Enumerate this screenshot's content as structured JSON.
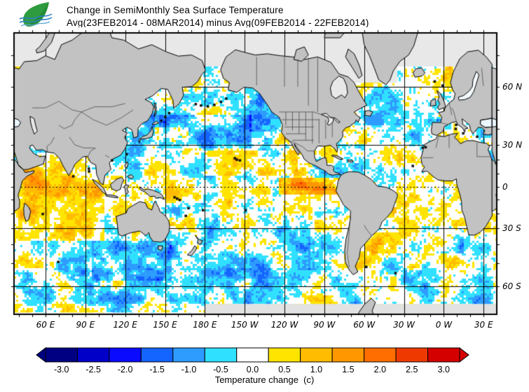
{
  "header": {
    "title_line1": "Change in SemiMonthly Sea Surface Temperature",
    "title_line2": "Avg(23FEB2014 - 08MAR2014) minus Avg(09FEB2014 - 22FEB2014)",
    "logo": {
      "leaf_color": "#2e9b3e",
      "leaf_dark": "#1d7a2c",
      "wave_color": "#2b7fc2"
    }
  },
  "map": {
    "projection": "mercator",
    "lon_ticks": [
      {
        "lon": 60,
        "label": "60 E"
      },
      {
        "lon": 90,
        "label": "90 E"
      },
      {
        "lon": 120,
        "label": "120 E"
      },
      {
        "lon": 150,
        "label": "150 E"
      },
      {
        "lon": 180,
        "label": "180 E"
      },
      {
        "lon": 210,
        "label": "150 W"
      },
      {
        "lon": 240,
        "label": "120 W"
      },
      {
        "lon": 270,
        "label": "90 W"
      },
      {
        "lon": 300,
        "label": "60 W"
      },
      {
        "lon": 330,
        "label": "30 W"
      },
      {
        "lon": 360,
        "label": "0 W"
      },
      {
        "lon": 390,
        "label": "30 E"
      }
    ],
    "lat_ticks": [
      {
        "lat": 60,
        "label": "60 N"
      },
      {
        "lat": 30,
        "label": "30 N"
      },
      {
        "lat": 0,
        "label": "0"
      },
      {
        "lat": -30,
        "label": "30 S"
      },
      {
        "lat": -60,
        "label": "60 S"
      }
    ],
    "land_color": "#c2c2c2",
    "nodata_color": "#e8e8e8",
    "ocean_zero_color": "#ffffff",
    "coast_color": "#000000"
  },
  "colorbar": {
    "caption": "Temperature change  (c)",
    "units": "c",
    "labels": [
      "-3.0",
      "-2.5",
      "-2.0",
      "-1.5",
      "-1.0",
      "-0.5",
      "0.0",
      "0.5",
      "1.0",
      "1.5",
      "2.0",
      "2.5",
      "3.0"
    ],
    "colors": [
      "#000082",
      "#0000c8",
      "#0a0aff",
      "#1464ff",
      "#2e9bff",
      "#30e1ff",
      "#ffffff",
      "#ffe400",
      "#ffbc00",
      "#ff9800",
      "#ff6e00",
      "#ee3a00",
      "#d40000"
    ]
  },
  "chart_data": {
    "type": "heatmap",
    "title": "Change in SemiMonthly Sea Surface Temperature",
    "subtitle": "Avg(23FEB2014 - 08MAR2014) minus Avg(09FEB2014 - 22FEB2014)",
    "variable": "sea surface temperature change",
    "units": "deg C",
    "scale_values": [
      -3.0,
      -2.5,
      -2.0,
      -1.5,
      -1.0,
      -0.5,
      0.0,
      0.5,
      1.0,
      1.5,
      2.0,
      2.5,
      3.0
    ],
    "palette": [
      "#000082",
      "#0000c8",
      "#0a0aff",
      "#1464ff",
      "#2e9bff",
      "#30e1ff",
      "#ffffff",
      "#ffe400",
      "#ffbc00",
      "#ff9800",
      "#ff6e00",
      "#ee3a00",
      "#d40000"
    ],
    "x_axis": {
      "label_ticks": [
        "60 E",
        "90 E",
        "120 E",
        "150 E",
        "180 E",
        "150 W",
        "120 W",
        "90 W",
        "60 W",
        "30 W",
        "0 W",
        "30 E"
      ],
      "grid_step_deg": 30
    },
    "y_axis": {
      "label_ticks": [
        "60 N",
        "30 N",
        "0",
        "30 S",
        "60 S"
      ],
      "grid_step_deg": 30
    },
    "notable_features": [
      "warm (+0.5 to +1.5) anomalies across tropical Indian Ocean",
      "strong warm patch (+1 to +3) in eastern equatorial Pacific near 120W-90W",
      "warm band north of equator in central/eastern North Pacific",
      "cool (-0.5 to -1.5) band in western/central North Pacific 30-45N",
      "cool anomalies south of Australia and in Tasman Sea",
      "mixed cool patches in subpolar North Atlantic",
      "no-data gray regions poleward of about 67N and along Antarctic margin"
    ]
  }
}
